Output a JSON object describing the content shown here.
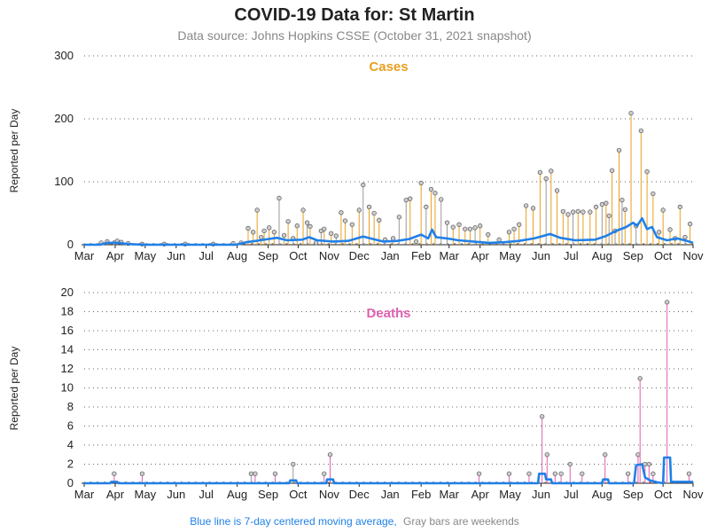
{
  "title": "COVID-19 Data for: St Martin",
  "subtitle": "Data source: Johns Hopkins CSSE (October 31, 2021 snapshot)",
  "footnote": {
    "blue_part": "Blue line is 7-day centered moving average,",
    "gray_part": "Gray bars are weekends"
  },
  "colors": {
    "cases": "#e8a020",
    "deaths": "#e060b0",
    "average": "#2080e8",
    "weekend": "#999999",
    "marker_fill": "#cccccc"
  },
  "chart_data": [
    {
      "type": "line",
      "panel": "Cases",
      "title": "Cases",
      "ylabel": "Reported per Day",
      "xlabel": "",
      "ylim": [
        0,
        300
      ],
      "yticks": [
        0,
        100,
        200,
        300
      ],
      "x_tick_labels": [
        "Mar",
        "Apr",
        "May",
        "Jun",
        "Jul",
        "Aug",
        "Sep",
        "Oct",
        "Nov",
        "Dec",
        "Jan",
        "Feb",
        "Mar",
        "Apr",
        "May",
        "Jun",
        "Jul",
        "Aug",
        "Sep",
        "Oct",
        "Nov"
      ],
      "x_start": "2020-03-01",
      "x_end": "2021-10-31",
      "grid": "horizontal dotted",
      "series": [
        {
          "kind": "daily_reports",
          "points": [
            [
              "2020-03-18",
              3
            ],
            [
              "2020-03-24",
              5
            ],
            [
              "2020-03-31",
              3
            ],
            [
              "2020-04-03",
              6
            ],
            [
              "2020-04-07",
              4
            ],
            [
              "2020-04-14",
              2
            ],
            [
              "2020-04-28",
              1
            ],
            [
              "2020-05-20",
              1
            ],
            [
              "2020-06-10",
              1
            ],
            [
              "2020-07-08",
              1
            ],
            [
              "2020-07-28",
              2
            ],
            [
              "2020-08-05",
              3
            ],
            [
              "2020-08-12",
              26
            ],
            [
              "2020-08-17",
              20
            ],
            [
              "2020-08-21",
              55
            ],
            [
              "2020-08-25",
              12
            ],
            [
              "2020-08-28",
              22
            ],
            [
              "2020-09-02",
              27
            ],
            [
              "2020-09-07",
              20
            ],
            [
              "2020-09-12",
              74
            ],
            [
              "2020-09-17",
              15
            ],
            [
              "2020-09-21",
              37
            ],
            [
              "2020-09-26",
              10
            ],
            [
              "2020-09-30",
              30
            ],
            [
              "2020-10-06",
              55
            ],
            [
              "2020-10-10",
              35
            ],
            [
              "2020-10-13",
              29
            ],
            [
              "2020-10-19",
              3
            ],
            [
              "2020-10-24",
              22
            ],
            [
              "2020-10-27",
              25
            ],
            [
              "2020-11-03",
              18
            ],
            [
              "2020-11-08",
              14
            ],
            [
              "2020-11-13",
              51
            ],
            [
              "2020-11-17",
              38
            ],
            [
              "2020-11-24",
              32
            ],
            [
              "2020-12-01",
              55
            ],
            [
              "2020-12-05",
              95
            ],
            [
              "2020-12-11",
              60
            ],
            [
              "2020-12-16",
              50
            ],
            [
              "2020-12-21",
              39
            ],
            [
              "2020-12-27",
              8
            ],
            [
              "2021-01-04",
              10
            ],
            [
              "2021-01-10",
              44
            ],
            [
              "2021-01-17",
              71
            ],
            [
              "2021-01-21",
              73
            ],
            [
              "2021-01-27",
              5
            ],
            [
              "2021-02-01",
              98
            ],
            [
              "2021-02-06",
              60
            ],
            [
              "2021-02-11",
              88
            ],
            [
              "2021-02-15",
              82
            ],
            [
              "2021-02-21",
              72
            ],
            [
              "2021-02-27",
              35
            ],
            [
              "2021-03-05",
              28
            ],
            [
              "2021-03-11",
              32
            ],
            [
              "2021-03-17",
              25
            ],
            [
              "2021-03-22",
              25
            ],
            [
              "2021-03-27",
              27
            ],
            [
              "2021-04-01",
              30
            ],
            [
              "2021-04-09",
              16
            ],
            [
              "2021-04-20",
              8
            ],
            [
              "2021-04-30",
              20
            ],
            [
              "2021-05-05",
              25
            ],
            [
              "2021-05-10",
              32
            ],
            [
              "2021-05-17",
              62
            ],
            [
              "2021-05-24",
              58
            ],
            [
              "2021-05-31",
              115
            ],
            [
              "2021-06-06",
              105
            ],
            [
              "2021-06-11",
              117
            ],
            [
              "2021-06-17",
              86
            ],
            [
              "2021-06-23",
              53
            ],
            [
              "2021-06-28",
              48
            ],
            [
              "2021-07-03",
              52
            ],
            [
              "2021-07-08",
              53
            ],
            [
              "2021-07-13",
              52
            ],
            [
              "2021-07-20",
              52
            ],
            [
              "2021-07-26",
              60
            ],
            [
              "2021-08-01",
              64
            ],
            [
              "2021-08-05",
              66
            ],
            [
              "2021-08-08",
              46
            ],
            [
              "2021-08-11",
              118
            ],
            [
              "2021-08-14",
              22
            ],
            [
              "2021-08-18",
              150
            ],
            [
              "2021-08-21",
              71
            ],
            [
              "2021-08-24",
              56
            ],
            [
              "2021-08-30",
              209
            ],
            [
              "2021-09-04",
              30
            ],
            [
              "2021-09-09",
              181
            ],
            [
              "2021-09-15",
              116
            ],
            [
              "2021-09-21",
              81
            ],
            [
              "2021-09-27",
              20
            ],
            [
              "2021-10-01",
              55
            ],
            [
              "2021-10-08",
              24
            ],
            [
              "2021-10-13",
              10
            ],
            [
              "2021-10-18",
              60
            ],
            [
              "2021-10-23",
              12
            ],
            [
              "2021-10-28",
              33
            ]
          ]
        },
        {
          "kind": "moving_average",
          "name": "7-day centered moving average",
          "points": [
            [
              "2020-03-01",
              0
            ],
            [
              "2020-03-17",
              0
            ],
            [
              "2020-03-24",
              3
            ],
            [
              "2020-04-04",
              3
            ],
            [
              "2020-04-14",
              1
            ],
            [
              "2020-05-01",
              0
            ],
            [
              "2020-07-31",
              0
            ],
            [
              "2020-08-10",
              4
            ],
            [
              "2020-08-20",
              6
            ],
            [
              "2020-09-01",
              9
            ],
            [
              "2020-09-10",
              11
            ],
            [
              "2020-09-20",
              7
            ],
            [
              "2020-10-05",
              8
            ],
            [
              "2020-10-12",
              12
            ],
            [
              "2020-10-20",
              7
            ],
            [
              "2020-11-05",
              5
            ],
            [
              "2020-11-20",
              6
            ],
            [
              "2020-12-05",
              13
            ],
            [
              "2020-12-15",
              9
            ],
            [
              "2020-12-25",
              5
            ],
            [
              "2021-01-08",
              6
            ],
            [
              "2021-01-20",
              9
            ],
            [
              "2021-02-01",
              16
            ],
            [
              "2021-02-08",
              10
            ],
            [
              "2021-02-12",
              24
            ],
            [
              "2021-02-16",
              12
            ],
            [
              "2021-02-27",
              10
            ],
            [
              "2021-03-10",
              7
            ],
            [
              "2021-03-25",
              5
            ],
            [
              "2021-04-10",
              3
            ],
            [
              "2021-04-25",
              4
            ],
            [
              "2021-05-10",
              6
            ],
            [
              "2021-05-25",
              10
            ],
            [
              "2021-06-01",
              13
            ],
            [
              "2021-06-10",
              17
            ],
            [
              "2021-06-20",
              11
            ],
            [
              "2021-07-05",
              7
            ],
            [
              "2021-07-25",
              8
            ],
            [
              "2021-08-05",
              14
            ],
            [
              "2021-08-15",
              22
            ],
            [
              "2021-08-25",
              28
            ],
            [
              "2021-09-01",
              35
            ],
            [
              "2021-09-05",
              30
            ],
            [
              "2021-09-10",
              42
            ],
            [
              "2021-09-15",
              25
            ],
            [
              "2021-09-20",
              28
            ],
            [
              "2021-09-25",
              12
            ],
            [
              "2021-10-05",
              7
            ],
            [
              "2021-10-15",
              10
            ],
            [
              "2021-10-25",
              6
            ],
            [
              "2021-10-31",
              3
            ]
          ]
        }
      ]
    },
    {
      "type": "line",
      "panel": "Deaths",
      "title": "Deaths",
      "ylabel": "Reported per Day",
      "xlabel": "",
      "ylim": [
        0,
        20
      ],
      "yticks": [
        0,
        2,
        4,
        6,
        8,
        10,
        12,
        14,
        16,
        18,
        20
      ],
      "x_tick_labels": [
        "Mar",
        "Apr",
        "May",
        "Jun",
        "Jul",
        "Aug",
        "Sep",
        "Oct",
        "Nov",
        "Dec",
        "Jan",
        "Feb",
        "Mar",
        "Apr",
        "May",
        "Jun",
        "Jul",
        "Aug",
        "Sep",
        "Oct",
        "Nov"
      ],
      "x_start": "2020-03-01",
      "x_end": "2021-10-31",
      "grid": "horizontal dotted",
      "series": [
        {
          "kind": "daily_reports",
          "points": [
            [
              "2020-03-31",
              1
            ],
            [
              "2020-04-28",
              1
            ],
            [
              "2020-08-15",
              1
            ],
            [
              "2020-08-19",
              1
            ],
            [
              "2020-09-08",
              1
            ],
            [
              "2020-09-26",
              2
            ],
            [
              "2020-10-27",
              1
            ],
            [
              "2020-11-02",
              3
            ],
            [
              "2021-03-31",
              1
            ],
            [
              "2021-04-30",
              1
            ],
            [
              "2021-05-20",
              1
            ],
            [
              "2021-06-02",
              7
            ],
            [
              "2021-06-07",
              3
            ],
            [
              "2021-06-15",
              1
            ],
            [
              "2021-06-21",
              1
            ],
            [
              "2021-06-30",
              2
            ],
            [
              "2021-07-12",
              1
            ],
            [
              "2021-08-04",
              3
            ],
            [
              "2021-08-27",
              1
            ],
            [
              "2021-09-06",
              3
            ],
            [
              "2021-09-08",
              11
            ],
            [
              "2021-09-13",
              2
            ],
            [
              "2021-09-17",
              2
            ],
            [
              "2021-09-21",
              1
            ],
            [
              "2021-10-05",
              19
            ],
            [
              "2021-10-27",
              1
            ]
          ]
        },
        {
          "kind": "moving_average",
          "name": "7-day centered moving average",
          "points": [
            [
              "2020-03-01",
              0
            ],
            [
              "2020-03-27",
              0
            ],
            [
              "2020-03-28",
              0.15
            ],
            [
              "2020-04-03",
              0.15
            ],
            [
              "2020-04-04",
              0
            ],
            [
              "2020-09-22",
              0
            ],
            [
              "2020-09-23",
              0.3
            ],
            [
              "2020-09-29",
              0.3
            ],
            [
              "2020-09-30",
              0
            ],
            [
              "2020-10-29",
              0
            ],
            [
              "2020-10-30",
              0.4
            ],
            [
              "2020-11-05",
              0.4
            ],
            [
              "2020-11-06",
              0
            ],
            [
              "2021-05-29",
              0
            ],
            [
              "2021-05-30",
              1.0
            ],
            [
              "2021-06-05",
              1.0
            ],
            [
              "2021-06-06",
              0.4
            ],
            [
              "2021-06-11",
              0.4
            ],
            [
              "2021-06-12",
              0
            ],
            [
              "2021-08-01",
              0
            ],
            [
              "2021-08-02",
              0.4
            ],
            [
              "2021-08-07",
              0.4
            ],
            [
              "2021-08-08",
              0
            ],
            [
              "2021-09-02",
              0
            ],
            [
              "2021-09-04",
              1.9
            ],
            [
              "2021-09-10",
              2.0
            ],
            [
              "2021-09-13",
              0.6
            ],
            [
              "2021-09-18",
              0.3
            ],
            [
              "2021-09-25",
              0.1
            ],
            [
              "2021-10-01",
              0
            ],
            [
              "2021-10-02",
              2.7
            ],
            [
              "2021-10-08",
              2.7
            ],
            [
              "2021-10-09",
              0.15
            ],
            [
              "2021-10-25",
              0.15
            ],
            [
              "2021-10-31",
              0.15
            ]
          ]
        }
      ]
    }
  ]
}
